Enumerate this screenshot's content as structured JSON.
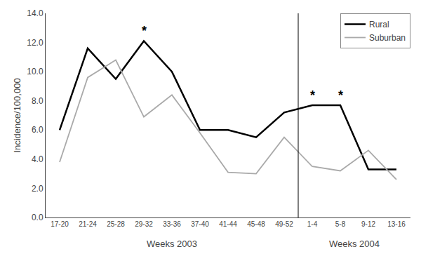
{
  "chart_data": {
    "type": "line",
    "categories": [
      "17-20",
      "21-24",
      "25-28",
      "29-32",
      "33-36",
      "37-40",
      "41-44",
      "45-48",
      "49-52",
      "1-4",
      "5-8",
      "9-12",
      "13-16"
    ],
    "series": [
      {
        "name": "Rural",
        "color": "#000000",
        "values": [
          6.0,
          11.6,
          9.5,
          12.1,
          10.0,
          6.0,
          6.0,
          5.5,
          7.2,
          7.7,
          7.7,
          3.3,
          3.3
        ]
      },
      {
        "name": "Suburban",
        "color": "#aaaaaa",
        "values": [
          3.8,
          9.6,
          10.8,
          6.9,
          8.4,
          5.8,
          3.1,
          3.0,
          5.5,
          3.5,
          3.2,
          4.6,
          2.6
        ]
      }
    ],
    "y_label": "Incidence/100,000",
    "ylim": [
      0.0,
      14.0
    ],
    "yticks": [
      {
        "value": 0.0,
        "label": "0.0"
      },
      {
        "value": 2.0,
        "label": "2.0"
      },
      {
        "value": 4.0,
        "label": "4.0"
      },
      {
        "value": 6.0,
        "label": "6.0"
      },
      {
        "value": 8.0,
        "label": "8.0"
      },
      {
        "value": 10.0,
        "label": "10.0"
      },
      {
        "value": 12.0,
        "label": "12.0"
      },
      {
        "value": 14.0,
        "label": "14.0"
      }
    ],
    "annotations": [
      {
        "text": "*",
        "x": "29-32",
        "series": "Rural"
      },
      {
        "text": "*",
        "x": "1-4",
        "series": "Rural"
      },
      {
        "text": "*",
        "x": "5-8",
        "series": "Rural"
      },
      {
        "text": "Weeks 2003",
        "x": [
          "17-20",
          "49-52"
        ]
      },
      {
        "text": "Weeks 2004",
        "x": [
          "1-4",
          "13-16"
        ]
      }
    ],
    "legend": "upper right",
    "grid": false
  }
}
